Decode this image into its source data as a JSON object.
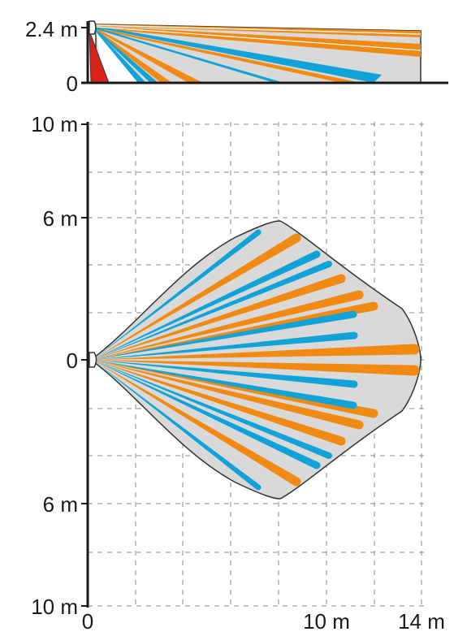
{
  "side_view": {
    "y_labels": [
      "2.4 m",
      "0"
    ]
  },
  "top_view": {
    "y_labels": [
      "10 m",
      "6 m",
      "0",
      "6 m",
      "10 m"
    ],
    "x_labels": [
      "0",
      "10 m",
      "14 m"
    ]
  },
  "colors": {
    "orange": "#f18a12",
    "blue": "#11a2d8",
    "red": "#d8231a",
    "coverage_fill": "#d9d9d9",
    "axis": "#1a1a1a",
    "grid": "#888888"
  },
  "icons": {
    "sensor": "sensor-icon"
  }
}
